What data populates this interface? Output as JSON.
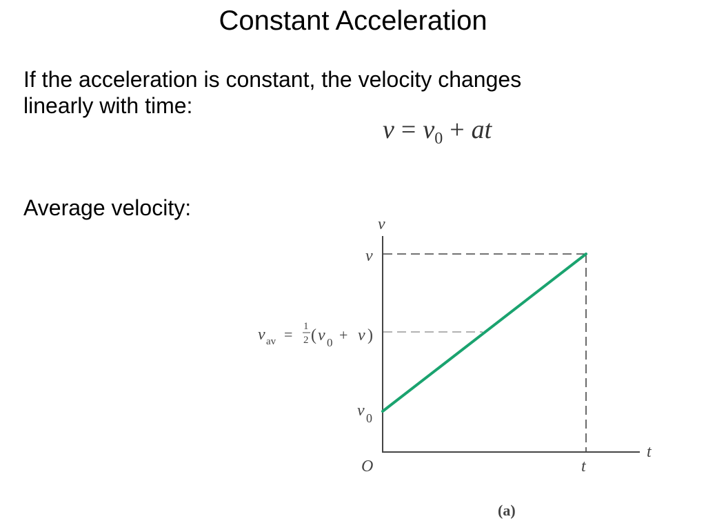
{
  "title": "Constant Acceleration",
  "intro_line1": "If the acceleration is constant, the velocity changes",
  "intro_line2": "linearly with time:",
  "equation": {
    "lhs": "v",
    "eq": "=",
    "v0_base": "v",
    "v0_sub": "0",
    "plus": "+",
    "a": "a",
    "t": "t"
  },
  "average_label": "Average velocity:",
  "graph": {
    "y_axis_label": "v",
    "x_axis_label": "t",
    "origin_label": "O",
    "tick_v": "v",
    "tick_v0_base": "v",
    "tick_v0_sub": "0",
    "tick_t": "t",
    "vav_base": "v",
    "vav_sub": "av",
    "vav_eq": "=",
    "half_num": "1",
    "half_den": "2",
    "paren_open": "(",
    "paren_v": "v",
    "paren_v0_sub": "0",
    "paren_plus": "+",
    "paren_v2": "v",
    "paren_close": ")",
    "caption": "(a)",
    "line_color": "#1aa36f",
    "axis_color": "#444444"
  }
}
